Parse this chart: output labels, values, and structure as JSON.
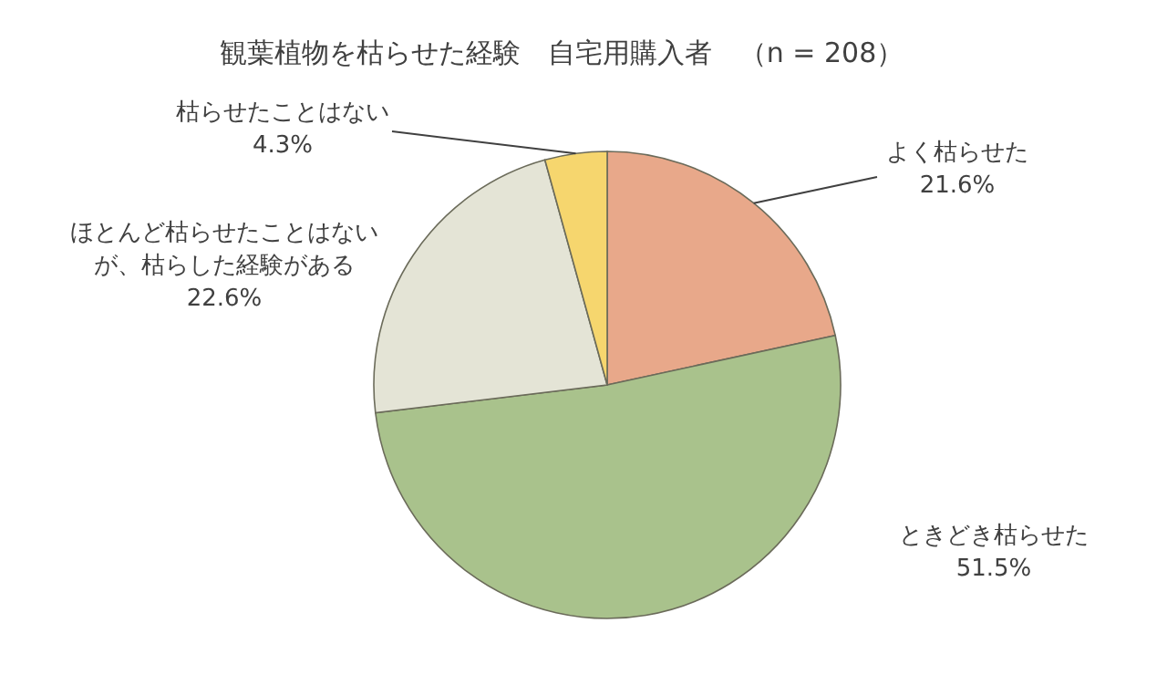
{
  "chart_data": {
    "type": "pie",
    "title": "観葉植物を枯らせた経験　自宅用購入者　（n = 208）",
    "categories": [
      "よく枯らせた",
      "ときどき枯らせた",
      "ほとんど枯らせたことはないが、枯らした経験がある",
      "枯らせたことはない"
    ],
    "values": [
      21.6,
      51.5,
      22.6,
      4.3
    ],
    "colors": [
      "#e8a88a",
      "#a9c28c",
      "#e4e4d6",
      "#f6d66e"
    ],
    "value_labels": [
      "21.6%",
      "51.5%",
      "22.6%",
      "4.3%"
    ]
  }
}
